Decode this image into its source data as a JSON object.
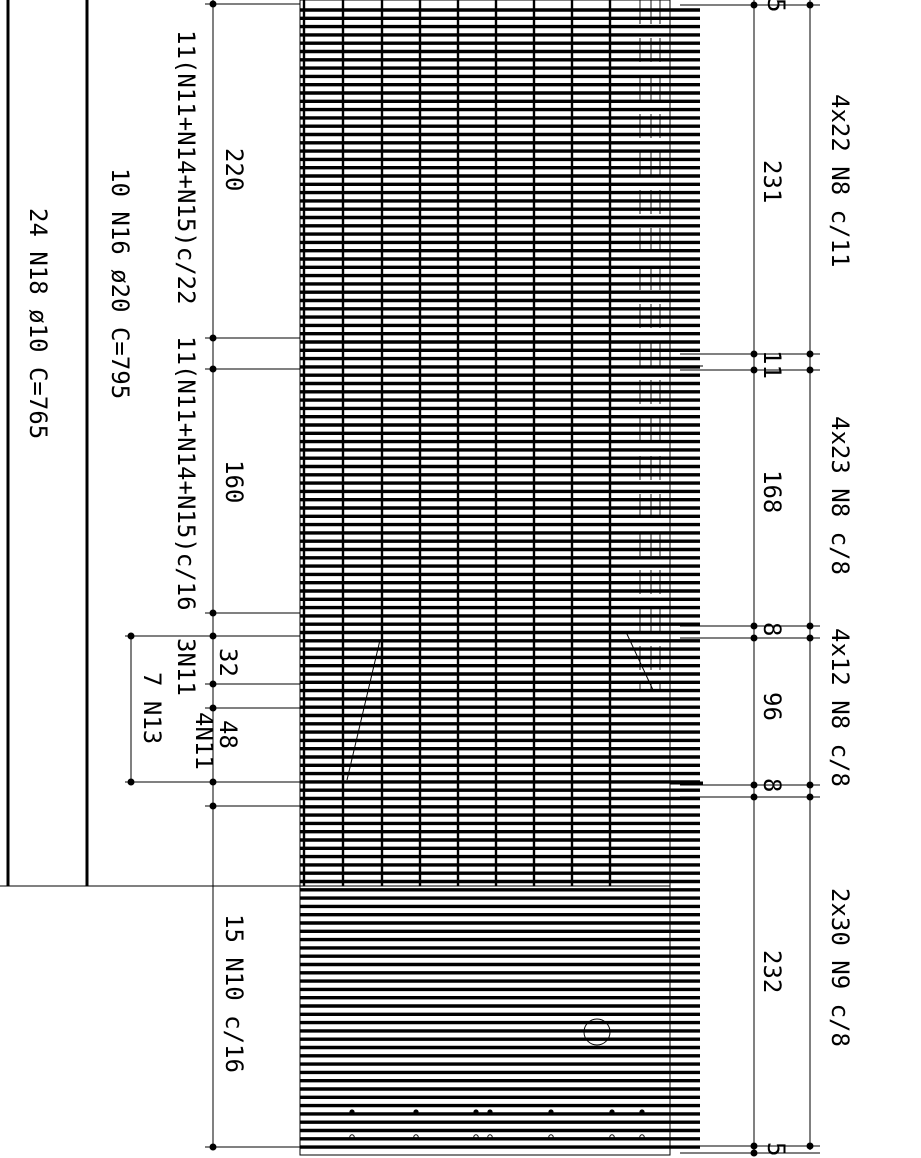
{
  "drawing": {
    "left_column": {
      "n18_bars": "24 N18 ø10 C=765",
      "n16_bars": "10 N16 ø20 C=795"
    },
    "stirrup_groups": [
      {
        "length": "220",
        "bars": "11(N11+N14+N15)c/22"
      },
      {
        "length": "160",
        "bars": "11(N11+N14+N15)c/16"
      },
      {
        "length": "32",
        "bars": "3N11"
      },
      {
        "length": "48",
        "bars": "4N11"
      }
    ],
    "n13_label": "7 N13",
    "n10_label": "15 N10 c/16",
    "right_dims": [
      "5",
      "231",
      "11",
      "168",
      "8",
      "96",
      "8",
      "232",
      "5"
    ],
    "right_labels": [
      "4x22 N8 c/11",
      "4x23 N8 c/8",
      "4x12 N8 c/8",
      "2x30 N9 c/8"
    ]
  }
}
